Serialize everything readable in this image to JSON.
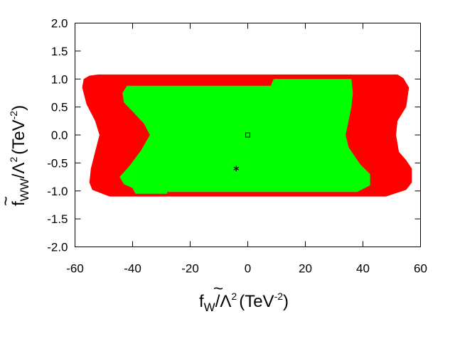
{
  "chart_data": {
    "type": "area",
    "title": "",
    "xlabel": {
      "tilde": "~",
      "base": "f",
      "sub": "W",
      "slash": "/Λ",
      "sup_lambda": "2",
      "unit": "(TeV",
      "sup_unit": "-2",
      "close": ")"
    },
    "ylabel": {
      "tilde": "~",
      "base": "f",
      "sub": "WW",
      "slash": "/Λ",
      "sup_lambda": "2",
      "unit": "(TeV",
      "sup_unit": "-2",
      "close": ")"
    },
    "xlim": [
      -60,
      60
    ],
    "ylim": [
      -2.0,
      2.0
    ],
    "xticks": [
      "-60",
      "-40",
      "-20",
      "0",
      "20",
      "40",
      "60"
    ],
    "yticks": [
      "2.0",
      "1.5",
      "1.0",
      "0.5",
      "0.0",
      "-0.5",
      "-1.0",
      "-1.5",
      "-2.0"
    ],
    "grid": false,
    "regions": [
      {
        "color": "#ff0000",
        "points": [
          [
            -52,
            1.08
          ],
          [
            52,
            1.08
          ],
          [
            54,
            1.02
          ],
          [
            56,
            0.85
          ],
          [
            55,
            0.5
          ],
          [
            52,
            0.25
          ],
          [
            51.5,
            0.0
          ],
          [
            52.5,
            -0.3
          ],
          [
            55,
            -0.45
          ],
          [
            57,
            -0.6
          ],
          [
            57,
            -0.85
          ],
          [
            55,
            -0.98
          ],
          [
            48,
            -1.1
          ],
          [
            -48,
            -1.1
          ],
          [
            -54,
            -0.98
          ],
          [
            -55,
            -0.85
          ],
          [
            -54.5,
            -0.6
          ],
          [
            -53,
            -0.3
          ],
          [
            -51.5,
            0.0
          ],
          [
            -53,
            0.25
          ],
          [
            -56,
            0.55
          ],
          [
            -57.5,
            0.85
          ],
          [
            -57,
            1.0
          ],
          [
            -55,
            1.06
          ]
        ]
      },
      {
        "color": "#00ff00",
        "points": [
          [
            -42,
            0.88
          ],
          [
            8,
            0.88
          ],
          [
            9,
            1.0
          ],
          [
            36,
            1.0
          ],
          [
            36.5,
            0.75
          ],
          [
            36,
            0.5
          ],
          [
            35,
            0.25
          ],
          [
            34,
            0.0
          ],
          [
            35,
            -0.22
          ],
          [
            39,
            -0.52
          ],
          [
            42.5,
            -0.7
          ],
          [
            42.5,
            -0.9
          ],
          [
            38,
            -1.02
          ],
          [
            -28,
            -1.02
          ],
          [
            -28,
            -1.05
          ],
          [
            -39,
            -1.05
          ],
          [
            -40,
            -0.95
          ],
          [
            -43,
            -0.88
          ],
          [
            -44.5,
            -0.75
          ],
          [
            -41,
            -0.55
          ],
          [
            -37,
            -0.27
          ],
          [
            -34,
            0.0
          ],
          [
            -36,
            0.2
          ],
          [
            -40,
            0.42
          ],
          [
            -43,
            0.58
          ],
          [
            -43.5,
            0.75
          ]
        ]
      }
    ],
    "points": [
      {
        "x": 0,
        "y": 0.0,
        "marker": "open-square"
      },
      {
        "x": -4,
        "y": -0.6,
        "marker": "asterisk"
      }
    ]
  }
}
